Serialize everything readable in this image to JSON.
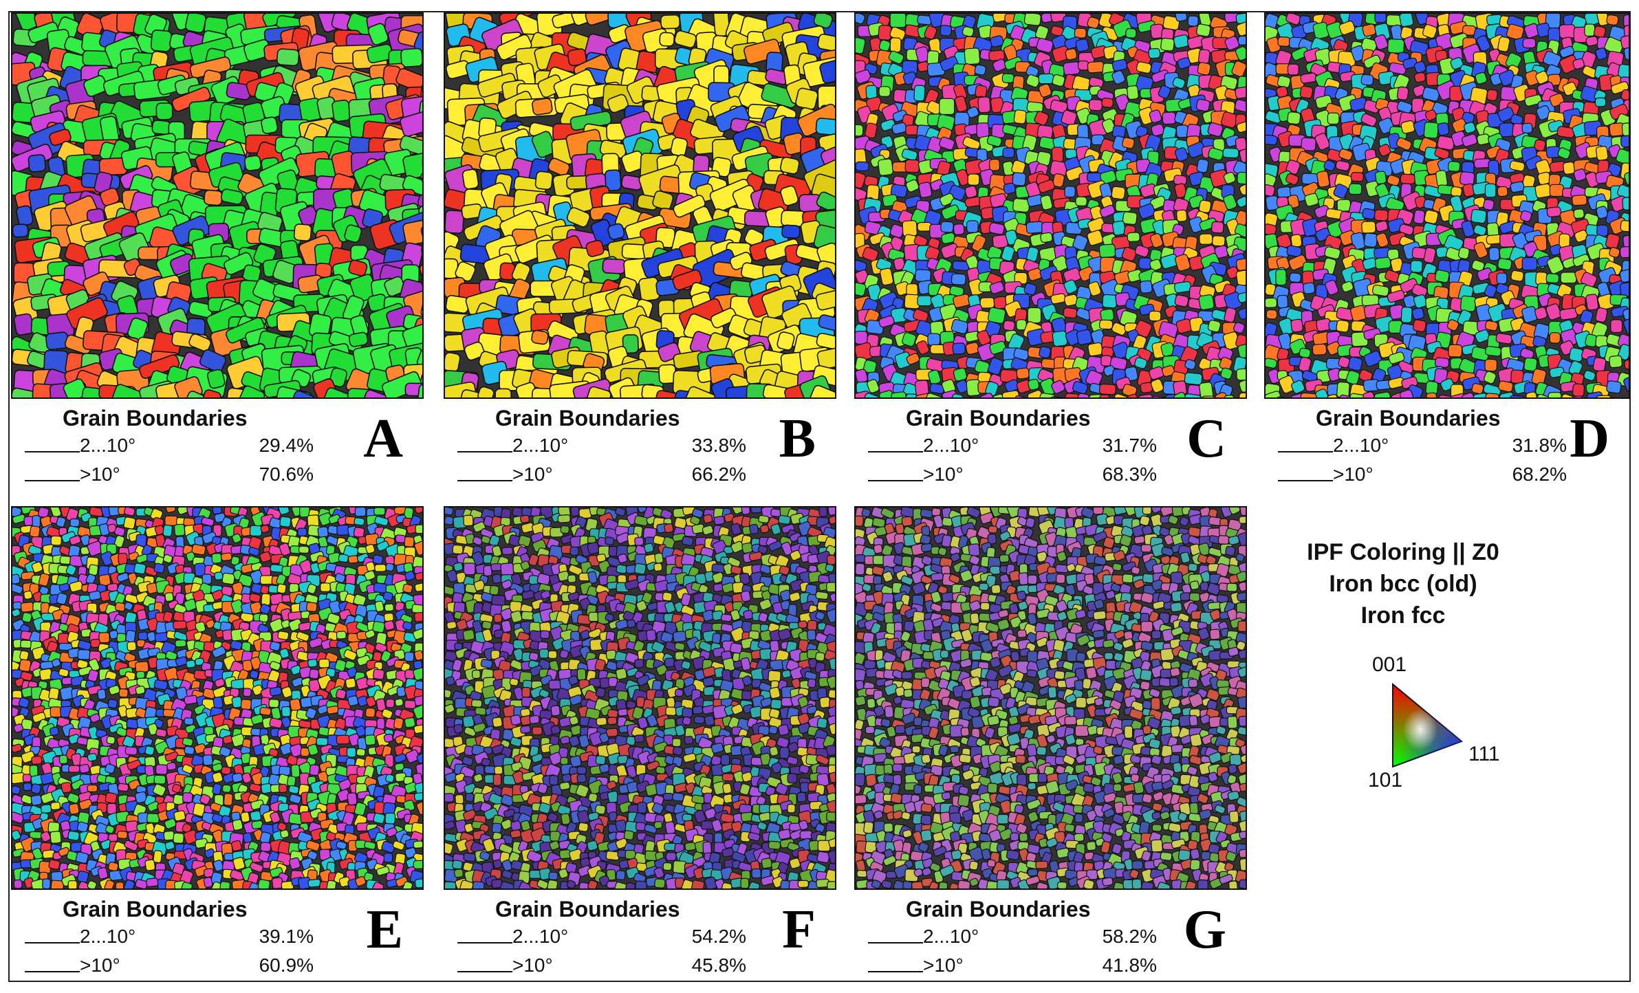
{
  "panels": [
    {
      "letter": "A",
      "title": "Grain Boundaries",
      "low_label": "2...10°",
      "low_value": "29.4%",
      "high_label": ">10°",
      "high_value": "70.6%"
    },
    {
      "letter": "B",
      "title": "Grain Boundaries",
      "low_label": "2...10°",
      "low_value": "33.8%",
      "high_label": ">10°",
      "high_value": "66.2%"
    },
    {
      "letter": "C",
      "title": "Grain Boundaries",
      "low_label": "2...10°",
      "low_value": "31.7%",
      "high_label": ">10°",
      "high_value": "68.3%"
    },
    {
      "letter": "D",
      "title": "Grain Boundaries",
      "low_label": "2...10°",
      "low_value": "31.8%",
      "high_label": ">10°",
      "high_value": "68.2%"
    },
    {
      "letter": "E",
      "title": "Grain Boundaries",
      "low_label": "2...10°",
      "low_value": "39.1%",
      "high_label": ">10°",
      "high_value": "60.9%"
    },
    {
      "letter": "F",
      "title": "Grain Boundaries",
      "low_label": "2...10°",
      "low_value": "54.2%",
      "high_label": ">10°",
      "high_value": "45.8%"
    },
    {
      "letter": "G",
      "title": "Grain Boundaries",
      "low_label": "2...10°",
      "low_value": "58.2%",
      "high_label": ">10°",
      "high_value": "41.8%"
    }
  ],
  "legend": {
    "line1": "IPF Coloring || Z0",
    "line2": "Iron bcc (old)",
    "line3": "Iron fcc",
    "corner_001": "001",
    "corner_101": "101",
    "corner_111": "111"
  },
  "map_palettes": {
    "A": [
      "#22dd33",
      "#33ee44",
      "#ee3322",
      "#ff5533",
      "#cc44dd",
      "#aa33cc",
      "#ff8833",
      "#3355dd",
      "#ffcc33",
      "#55dd55"
    ],
    "B": [
      "#eedd22",
      "#ffee33",
      "#2244dd",
      "#3366ee",
      "#22bbee",
      "#ee3322",
      "#ff8822",
      "#cc44cc",
      "#33cc44",
      "#ddcc11"
    ],
    "C": [
      "#ee3344",
      "#33dd44",
      "#3355ee",
      "#cc44dd",
      "#ffcc22",
      "#22cccc",
      "#ff7722",
      "#88ee44",
      "#ee44aa",
      "#4488ff"
    ],
    "D": [
      "#ee3344",
      "#33dd44",
      "#3355ee",
      "#cc44dd",
      "#ffcc22",
      "#22cccc",
      "#ff7722",
      "#88ee44",
      "#ee44aa",
      "#4488ff"
    ],
    "E": [
      "#ee3344",
      "#44dd44",
      "#3355ee",
      "#cc44dd",
      "#eedd22",
      "#22cccc",
      "#ff7722",
      "#99ee44",
      "#ee44aa",
      "#4488ff"
    ],
    "F": [
      "#4444aa",
      "#553399",
      "#8844cc",
      "#aa55dd",
      "#99cc44",
      "#66aa33",
      "#cc4444",
      "#33aaaa",
      "#ddcc33",
      "#4466cc"
    ],
    "G": [
      "#4455aa",
      "#5544aa",
      "#8855cc",
      "#aa66cc",
      "#88cc55",
      "#66aa44",
      "#cc5544",
      "#44aaaa",
      "#cccc55",
      "#cc66aa"
    ]
  }
}
